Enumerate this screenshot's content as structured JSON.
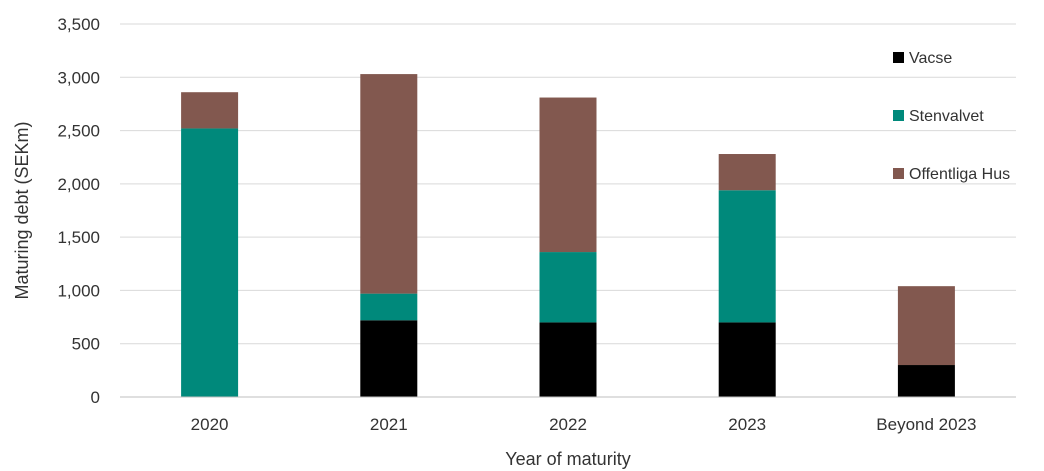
{
  "chart_data": {
    "type": "bar",
    "stacked": true,
    "title": "",
    "xlabel": "Year of maturity",
    "ylabel": "Maturing debt (SEKm)",
    "ylim": [
      0,
      3500
    ],
    "yticks": [
      0,
      500,
      1000,
      1500,
      2000,
      2500,
      3000,
      3500
    ],
    "ytick_labels": [
      "0",
      "500",
      "1,000",
      "1,500",
      "2,000",
      "2,500",
      "3,000",
      "3,500"
    ],
    "grid": true,
    "legend_position": "right",
    "categories": [
      "2020",
      "2021",
      "2022",
      "2023",
      "Beyond 2023"
    ],
    "series": [
      {
        "name": "Vacse",
        "color": "#000000",
        "values": [
          0,
          720,
          700,
          700,
          300
        ]
      },
      {
        "name": "Stenvalvet",
        "color": "#00897B",
        "values": [
          2520,
          250,
          660,
          1240,
          0
        ]
      },
      {
        "name": "Offentliga Hus",
        "color": "#82584F",
        "values": [
          340,
          2060,
          1450,
          340,
          740
        ]
      }
    ]
  }
}
